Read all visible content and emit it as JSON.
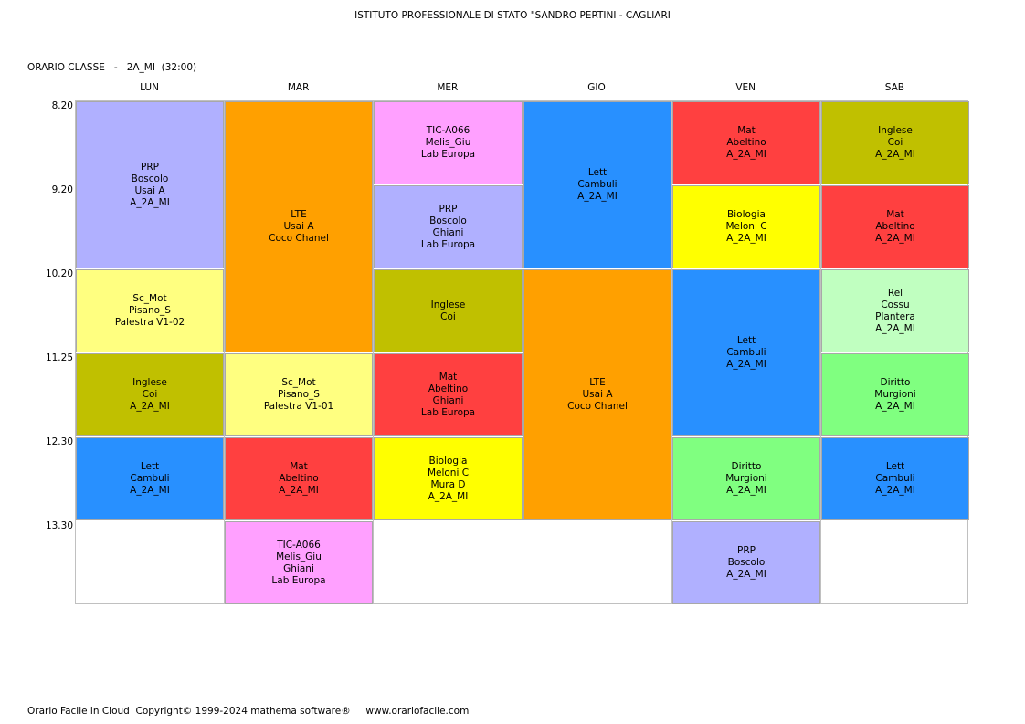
{
  "header": {
    "school": "ISTITUTO PROFESSIONALE DI STATO \"SANDRO PERTINI - CAGLIARI",
    "class_caption": "ORARIO CLASSE   -   2A_MI  (32:00)"
  },
  "days": [
    "LUN",
    "MAR",
    "MER",
    "GIO",
    "VEN",
    "SAB"
  ],
  "times": [
    "8.20",
    "9.20",
    "10.20",
    "11.25",
    "12.30",
    "13.30"
  ],
  "colors": {
    "PRP": "#b0b0ff",
    "LTE": "#ffa000",
    "TIC": "#ffa0ff",
    "Lett": "#2890ff",
    "Mat": "#ff4040",
    "Inglese": "#c0c000",
    "Biologia": "#ffff00",
    "Sc_Mot": "#ffff80",
    "Rel": "#c0ffc0",
    "Diritto": "#80ff80"
  },
  "lessons": [
    {
      "day": 0,
      "start": 0,
      "span": 2,
      "subject": "PRP",
      "lines": [
        "PRP",
        "Boscolo",
        "Usai A",
        "A_2A_MI"
      ]
    },
    {
      "day": 0,
      "start": 2,
      "span": 1,
      "subject": "Sc_Mot",
      "lines": [
        "Sc_Mot",
        "Pisano_S",
        "Palestra V1-02"
      ]
    },
    {
      "day": 0,
      "start": 3,
      "span": 1,
      "subject": "Inglese",
      "lines": [
        "Inglese",
        "Coi",
        "A_2A_MI"
      ]
    },
    {
      "day": 0,
      "start": 4,
      "span": 1,
      "subject": "Lett",
      "lines": [
        "Lett",
        "Cambuli",
        "A_2A_MI"
      ]
    },
    {
      "day": 1,
      "start": 0,
      "span": 3,
      "subject": "LTE",
      "lines": [
        "LTE",
        "Usai A",
        "Coco Chanel"
      ]
    },
    {
      "day": 1,
      "start": 3,
      "span": 1,
      "subject": "Sc_Mot",
      "lines": [
        "Sc_Mot",
        "Pisano_S",
        "Palestra V1-01"
      ]
    },
    {
      "day": 1,
      "start": 4,
      "span": 1,
      "subject": "Mat",
      "lines": [
        "Mat",
        "Abeltino",
        "A_2A_MI"
      ]
    },
    {
      "day": 1,
      "start": 5,
      "span": 1,
      "subject": "TIC",
      "lines": [
        "TIC-A066",
        "Melis_Giu",
        "Ghiani",
        "Lab Europa"
      ]
    },
    {
      "day": 2,
      "start": 0,
      "span": 1,
      "subject": "TIC",
      "lines": [
        "TIC-A066",
        "Melis_Giu",
        "Lab Europa"
      ]
    },
    {
      "day": 2,
      "start": 1,
      "span": 1,
      "subject": "PRP",
      "lines": [
        "PRP",
        "Boscolo",
        "Ghiani",
        "Lab Europa"
      ]
    },
    {
      "day": 2,
      "start": 2,
      "span": 1,
      "subject": "Inglese",
      "lines": [
        "Inglese",
        "Coi"
      ]
    },
    {
      "day": 2,
      "start": 3,
      "span": 1,
      "subject": "Mat",
      "lines": [
        "Mat",
        "Abeltino",
        "Ghiani",
        "Lab Europa"
      ]
    },
    {
      "day": 2,
      "start": 4,
      "span": 1,
      "subject": "Biologia",
      "lines": [
        "Biologia",
        "Meloni C",
        "Mura D",
        "A_2A_MI"
      ]
    },
    {
      "day": 3,
      "start": 0,
      "span": 2,
      "subject": "Lett",
      "lines": [
        "Lett",
        "Cambuli",
        "A_2A_MI"
      ]
    },
    {
      "day": 3,
      "start": 2,
      "span": 3,
      "subject": "LTE",
      "lines": [
        "LTE",
        "Usai A",
        "Coco Chanel"
      ]
    },
    {
      "day": 4,
      "start": 0,
      "span": 1,
      "subject": "Mat",
      "lines": [
        "Mat",
        "Abeltino",
        "A_2A_MI"
      ]
    },
    {
      "day": 4,
      "start": 1,
      "span": 1,
      "subject": "Biologia",
      "lines": [
        "Biologia",
        "Meloni C",
        "A_2A_MI"
      ]
    },
    {
      "day": 4,
      "start": 2,
      "span": 2,
      "subject": "Lett",
      "lines": [
        "Lett",
        "Cambuli",
        "A_2A_MI"
      ]
    },
    {
      "day": 4,
      "start": 4,
      "span": 1,
      "subject": "Diritto",
      "lines": [
        "Diritto",
        "Murgioni",
        "A_2A_MI"
      ]
    },
    {
      "day": 4,
      "start": 5,
      "span": 1,
      "subject": "PRP",
      "lines": [
        "PRP",
        "Boscolo",
        "A_2A_MI"
      ]
    },
    {
      "day": 5,
      "start": 0,
      "span": 1,
      "subject": "Inglese",
      "lines": [
        "Inglese",
        "Coi",
        "A_2A_MI"
      ]
    },
    {
      "day": 5,
      "start": 1,
      "span": 1,
      "subject": "Mat",
      "lines": [
        "Mat",
        "Abeltino",
        "A_2A_MI"
      ]
    },
    {
      "day": 5,
      "start": 2,
      "span": 1,
      "subject": "Rel",
      "lines": [
        "Rel",
        "Cossu",
        "Plantera",
        "A_2A_MI"
      ]
    },
    {
      "day": 5,
      "start": 3,
      "span": 1,
      "subject": "Diritto",
      "lines": [
        "Diritto",
        "Murgioni",
        "A_2A_MI"
      ]
    },
    {
      "day": 5,
      "start": 4,
      "span": 1,
      "subject": "Lett",
      "lines": [
        "Lett",
        "Cambuli",
        "A_2A_MI"
      ]
    }
  ],
  "footer": "Orario Facile in Cloud  Copyright© 1999-2024 mathema software®     www.orariofacile.com"
}
